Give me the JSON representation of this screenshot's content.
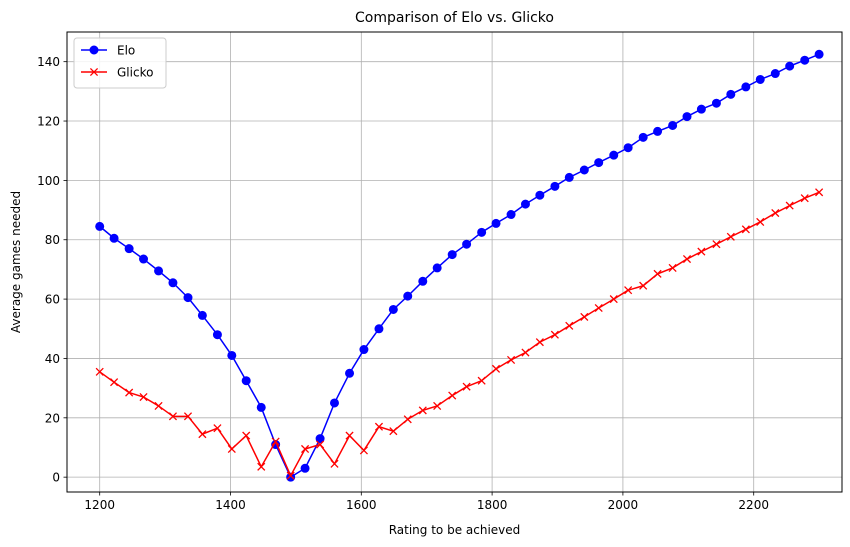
{
  "chart_data": {
    "type": "line",
    "title": "Comparison of Elo vs. Glicko",
    "xlabel": "Rating to be achieved",
    "ylabel": "Average games needed",
    "xlim": [
      1150,
      2335
    ],
    "ylim": [
      -5,
      150
    ],
    "xticks": [
      1200,
      1400,
      1600,
      1800,
      2000,
      2200
    ],
    "yticks": [
      0,
      20,
      40,
      60,
      80,
      100,
      120,
      140
    ],
    "grid": true,
    "legend_position": "top-left",
    "x": [
      1200,
      1222,
      1245,
      1267,
      1290,
      1312,
      1335,
      1357,
      1380,
      1402,
      1424,
      1447,
      1469,
      1492,
      1514,
      1537,
      1559,
      1582,
      1604,
      1627,
      1649,
      1671,
      1694,
      1716,
      1739,
      1761,
      1784,
      1806,
      1829,
      1851,
      1873,
      1896,
      1918,
      1941,
      1963,
      1986,
      2008,
      2031,
      2053,
      2076,
      2098,
      2120,
      2143,
      2165,
      2188,
      2210,
      2233,
      2255,
      2278,
      2300
    ],
    "series": [
      {
        "name": "Elo",
        "color": "#0000ff",
        "marker": "circle",
        "values": [
          84.5,
          80.5,
          77,
          73.5,
          69.5,
          65.5,
          60.5,
          54.5,
          48,
          41,
          32.5,
          23.5,
          11,
          0,
          3,
          13,
          25,
          35,
          43,
          50,
          56.5,
          61,
          66,
          70.5,
          75,
          78.5,
          82.5,
          85.5,
          88.5,
          92,
          95,
          98,
          101,
          103.5,
          106,
          108.5,
          111,
          114.5,
          116.5,
          118.5,
          121.5,
          124,
          126,
          129,
          131.5,
          134,
          136,
          138.5,
          140.5,
          142.5
        ]
      },
      {
        "name": "Glicko",
        "color": "#ff0000",
        "marker": "x",
        "values": [
          35.5,
          32,
          28.5,
          27,
          24,
          20.5,
          20.5,
          14.5,
          16.5,
          9.5,
          14,
          3.5,
          12,
          0.5,
          9.5,
          11,
          4.5,
          14,
          9,
          17,
          15.5,
          19.5,
          22.5,
          24,
          27.5,
          30.5,
          32.5,
          36.5,
          39.5,
          42,
          45.5,
          48,
          51,
          54,
          57,
          60,
          63,
          64.5,
          68.5,
          70.5,
          73.5,
          76,
          78.5,
          81,
          83.5,
          86,
          89,
          91.5,
          94,
          96
        ]
      }
    ]
  }
}
